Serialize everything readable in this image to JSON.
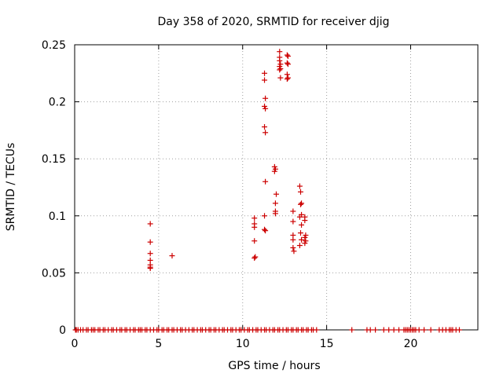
{
  "chart_data": {
    "type": "scatter",
    "title": "Day 358 of 2020, SRMTID for receiver djig",
    "xlabel": "GPS time / hours",
    "ylabel": "SRMTID / TECUs",
    "xlim": [
      0,
      24
    ],
    "ylim": [
      0,
      0.25
    ],
    "xticks": [
      0,
      5,
      10,
      15,
      20
    ],
    "yticks": [
      0,
      0.05,
      0.1,
      0.15,
      0.2,
      0.25
    ],
    "xtick_labels": [
      "0",
      "5",
      "10",
      "15",
      "20"
    ],
    "ytick_labels": [
      "0",
      "0.05",
      "0.1",
      "0.15",
      "0.2",
      "0.25"
    ],
    "grid": true,
    "marker": "+",
    "marker_color": "#cc0000",
    "series": [
      {
        "x": [
          0.05,
          0.1,
          0.2,
          0.35,
          0.5,
          0.7,
          0.8,
          1.0,
          1.1,
          1.2,
          1.4,
          1.5,
          1.7,
          1.8,
          2.0,
          2.2,
          2.3,
          2.5,
          2.7,
          2.8,
          3.0,
          3.1,
          3.3,
          3.5,
          3.6,
          3.8,
          3.9,
          4.0,
          4.2,
          4.3,
          4.5,
          4.7,
          4.9,
          5.0,
          5.2,
          5.3,
          5.5,
          5.6,
          5.8,
          5.9,
          6.1,
          6.3,
          6.4,
          6.6,
          6.8,
          7.0,
          7.1,
          7.3,
          7.5,
          7.6,
          7.8,
          8.0,
          8.1,
          8.3,
          8.4,
          8.6,
          8.8,
          8.9,
          9.1,
          9.3,
          9.4,
          9.6,
          9.8,
          9.9,
          10.1,
          10.3,
          10.4,
          10.6,
          10.8,
          10.9,
          11.1,
          11.3,
          11.4,
          11.6,
          11.8,
          11.9,
          12.1,
          12.2,
          12.4,
          12.6,
          12.7,
          12.9,
          13.0,
          13.2,
          13.3,
          13.5,
          13.6,
          13.8,
          13.9,
          14.1,
          14.2,
          14.4,
          16.5,
          17.4,
          17.6,
          17.9,
          18.4,
          18.7,
          19.0,
          19.3,
          19.6,
          19.7,
          19.8,
          19.9,
          20.0,
          20.1,
          20.2,
          20.3,
          20.5,
          20.8,
          21.2,
          21.7,
          21.9,
          22.1,
          22.3,
          22.4,
          22.5,
          22.7,
          22.9,
          4.5,
          4.5,
          4.5,
          4.5,
          4.5,
          4.5,
          4.5,
          5.8,
          10.7,
          10.7,
          10.7,
          10.7,
          10.75,
          10.7,
          11.3,
          11.3,
          11.35,
          11.3,
          11.35,
          11.3,
          11.35,
          11.35,
          11.3,
          11.3,
          11.35,
          11.9,
          11.95,
          11.9,
          12.0,
          11.95,
          11.95,
          11.95,
          12.2,
          12.2,
          12.2,
          12.25,
          12.2,
          12.25,
          12.2,
          12.25,
          12.65,
          12.7,
          12.65,
          12.7,
          12.65,
          12.7,
          12.65,
          13.0,
          13.0,
          13.0,
          13.0,
          13.0,
          13.05,
          13.4,
          13.45,
          13.5,
          13.45,
          13.5,
          13.4,
          13.5,
          13.45,
          13.5,
          13.4,
          13.7,
          13.7,
          13.75,
          13.7,
          13.75,
          13.7
        ],
        "y": [
          0,
          0,
          0,
          0,
          0,
          0,
          0,
          0,
          0,
          0,
          0,
          0,
          0,
          0,
          0,
          0,
          0,
          0,
          0,
          0,
          0,
          0,
          0,
          0,
          0,
          0,
          0,
          0,
          0,
          0,
          0,
          0,
          0,
          0,
          0,
          0,
          0,
          0,
          0,
          0,
          0,
          0,
          0,
          0,
          0,
          0,
          0,
          0,
          0,
          0,
          0,
          0,
          0,
          0,
          0,
          0,
          0,
          0,
          0,
          0,
          0,
          0,
          0,
          0,
          0,
          0,
          0,
          0,
          0,
          0,
          0,
          0,
          0,
          0,
          0,
          0,
          0,
          0,
          0,
          0,
          0,
          0,
          0,
          0,
          0,
          0,
          0,
          0,
          0,
          0,
          0,
          0,
          0,
          0,
          0,
          0,
          0,
          0,
          0,
          0,
          0,
          0,
          0,
          0,
          0,
          0,
          0,
          0,
          0,
          0,
          0,
          0,
          0,
          0,
          0,
          0,
          0,
          0,
          0,
          0.093,
          0.077,
          0.067,
          0.061,
          0.057,
          0.055,
          0.054,
          0.065,
          0.098,
          0.093,
          0.09,
          0.078,
          0.064,
          0.063,
          0.225,
          0.219,
          0.203,
          0.196,
          0.194,
          0.178,
          0.173,
          0.13,
          0.1,
          0.088,
          0.087,
          0.143,
          0.141,
          0.139,
          0.119,
          0.111,
          0.104,
          0.102,
          0.244,
          0.239,
          0.236,
          0.233,
          0.231,
          0.229,
          0.228,
          0.221,
          0.241,
          0.24,
          0.234,
          0.233,
          0.224,
          0.221,
          0.22,
          0.104,
          0.095,
          0.083,
          0.079,
          0.072,
          0.069,
          0.126,
          0.121,
          0.111,
          0.11,
          0.101,
          0.099,
          0.092,
          0.085,
          0.079,
          0.074,
          0.099,
          0.096,
          0.083,
          0.081,
          0.078,
          0.076
        ]
      }
    ]
  }
}
